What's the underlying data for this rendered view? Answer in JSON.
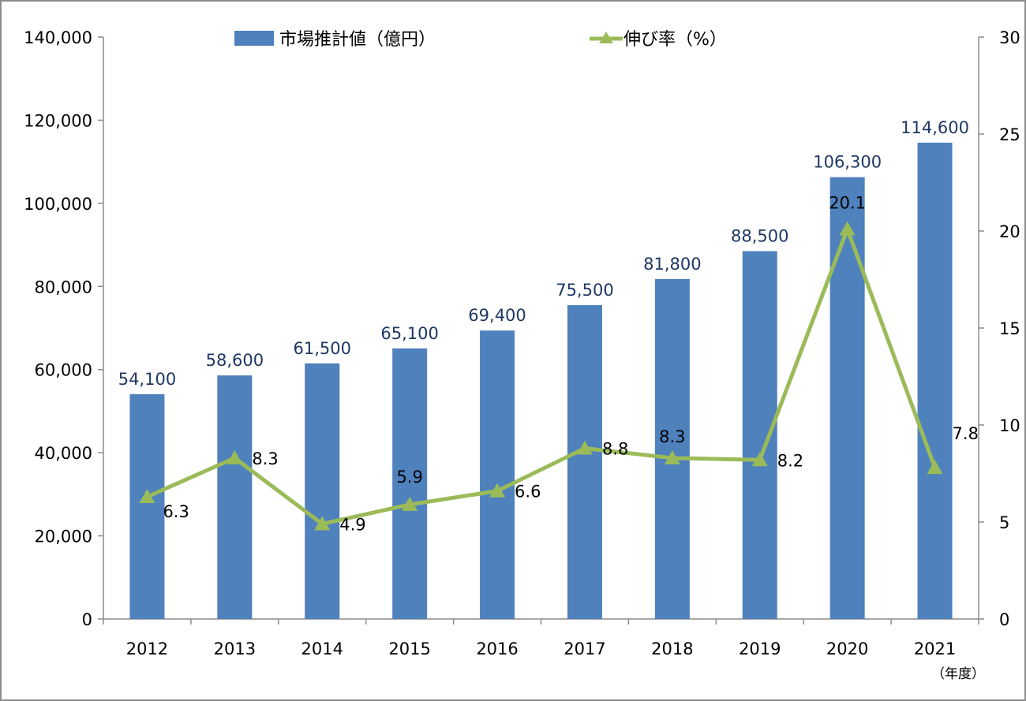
{
  "chart_data": {
    "type": "bar+line",
    "categories": [
      "2012",
      "2013",
      "2014",
      "2015",
      "2016",
      "2017",
      "2018",
      "2019",
      "2020",
      "2021"
    ],
    "xlabel": "（年度）",
    "series": [
      {
        "name": "市場推計値（億円）",
        "type": "bar",
        "axis": "left",
        "color": "#4f81bd",
        "values": [
          54100,
          58600,
          61500,
          65100,
          69400,
          75500,
          81800,
          88500,
          106300,
          114600
        ],
        "labels": [
          "54,100",
          "58,600",
          "61,500",
          "65,100",
          "69,400",
          "75,500",
          "81,800",
          "88,500",
          "106,300",
          "114,600"
        ],
        "label_color": "#1f3864"
      },
      {
        "name": "伸び率（%）",
        "type": "line",
        "axis": "right",
        "color": "#9bbb59",
        "marker": "triangle",
        "values": [
          6.3,
          8.3,
          4.9,
          5.9,
          6.6,
          8.8,
          8.3,
          8.2,
          20.1,
          7.8
        ],
        "labels": [
          "6.3",
          "8.3",
          "4.9",
          "5.9",
          "6.6",
          "8.8",
          "8.3",
          "8.2",
          "20.1",
          "7.8"
        ]
      }
    ],
    "y_left": {
      "range": [
        0,
        140000
      ],
      "ticks": [
        "0",
        "20,000",
        "40,000",
        "60,000",
        "80,000",
        "100,000",
        "120,000",
        "140,000"
      ],
      "tick_values": [
        0,
        20000,
        40000,
        60000,
        80000,
        100000,
        120000,
        140000
      ]
    },
    "y_right": {
      "range": [
        0,
        30
      ],
      "ticks": [
        "0",
        "5",
        "10",
        "15",
        "20",
        "25",
        "30"
      ],
      "tick_values": [
        0,
        5,
        10,
        15,
        20,
        25,
        30
      ]
    },
    "grid": false,
    "legend": "top"
  }
}
